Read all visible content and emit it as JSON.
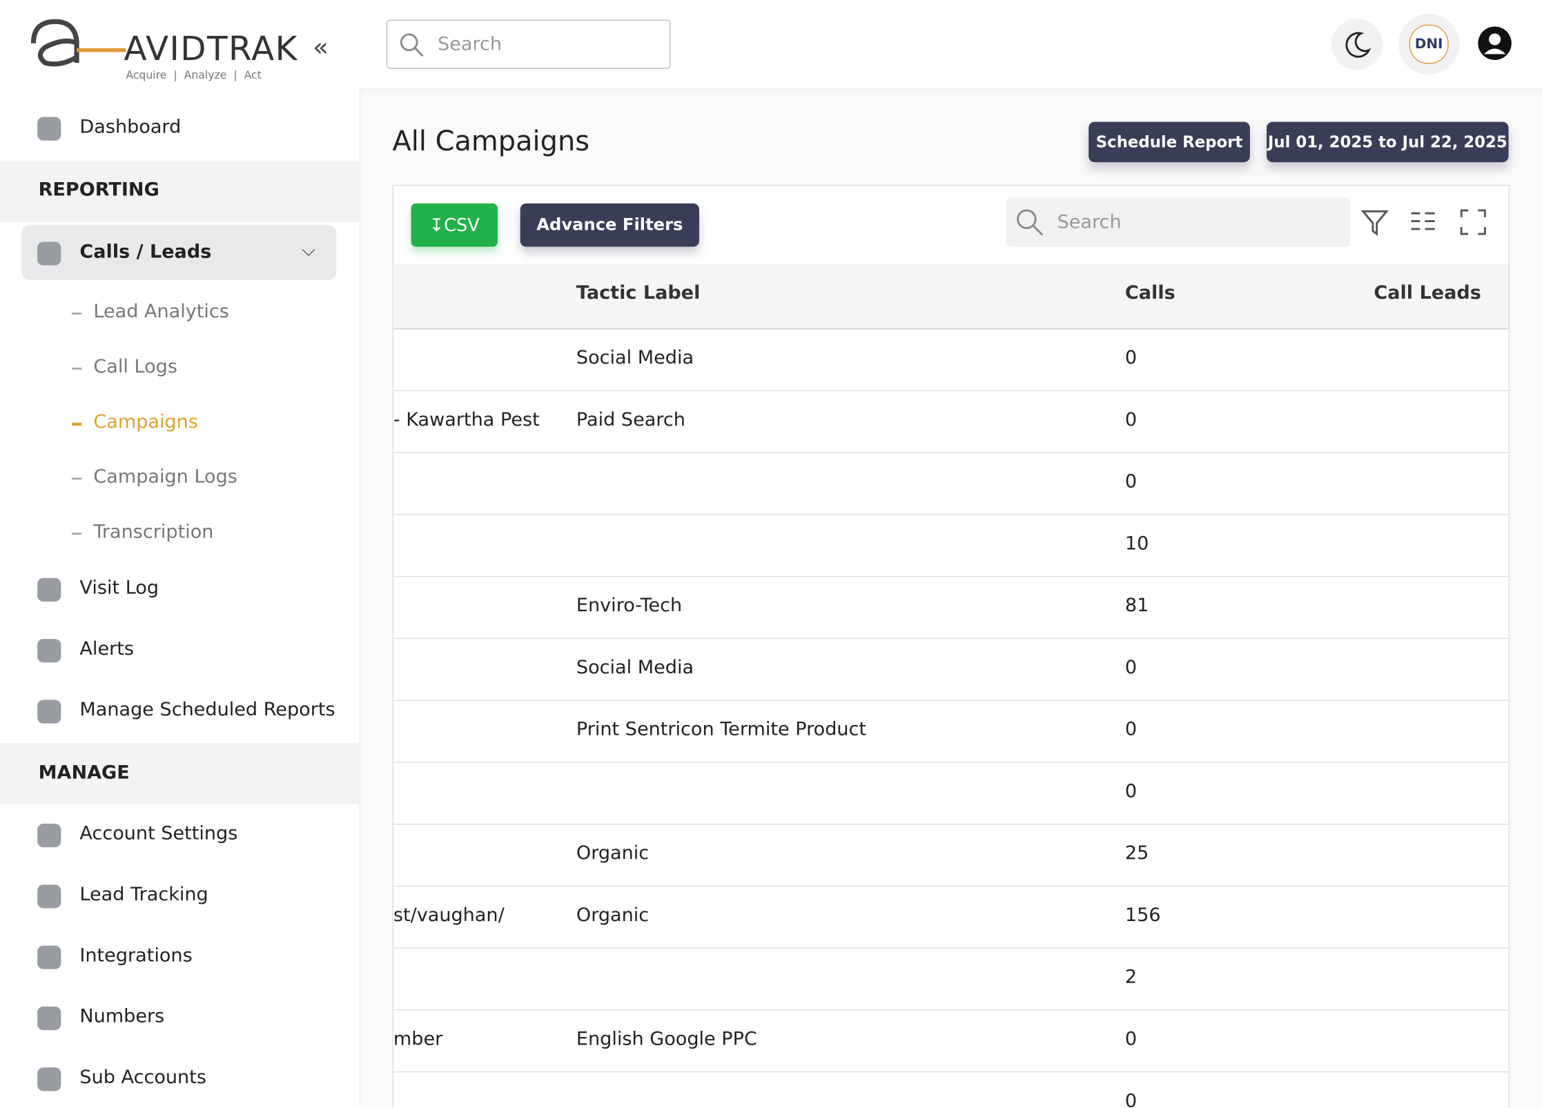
{
  "logo": {
    "brand": "AVIDTRAK",
    "tagline": "Acquire  |  Analyze  |  Act"
  },
  "header": {
    "search_placeholder": "Search",
    "badge": "DNI"
  },
  "sidebar": {
    "dashboard": "Dashboard",
    "reporting": {
      "title": "REPORTING",
      "group": "Calls / Leads",
      "subitems": [
        "Lead Analytics",
        "Call Logs",
        "Campaigns",
        "Campaign Logs",
        "Transcription"
      ],
      "active_subitem": 2,
      "items": [
        "Visit Log",
        "Alerts",
        "Manage Scheduled Reports"
      ]
    },
    "manage": {
      "title": "MANAGE",
      "items": [
        "Account Settings",
        "Lead Tracking",
        "Integrations",
        "Numbers",
        "Sub Accounts"
      ]
    }
  },
  "page": {
    "title": "All Campaigns",
    "schedule_button": "Schedule Report",
    "date_range": "Jul 01, 2025 to Jul 22, 2025"
  },
  "table": {
    "csv_button": "CSV",
    "filter_button": "Advance Filters",
    "search_placeholder": "Search",
    "columns": [
      "Tactic Label",
      "Calls",
      "Call Leads"
    ],
    "rows": [
      [
        null,
        "Social Media",
        "0"
      ],
      [
        "- Kawartha Pest",
        "Paid Search",
        "0"
      ],
      [
        null,
        null,
        "0"
      ],
      [
        null,
        null,
        "10"
      ],
      [
        null,
        "Enviro-Tech",
        "81"
      ],
      [
        null,
        "Social Media",
        "0"
      ],
      [
        null,
        "Print Sentricon Termite Product",
        "0"
      ],
      [
        null,
        null,
        "0"
      ],
      [
        null,
        "Organic",
        "25"
      ],
      [
        "st/vaughan/",
        "Organic",
        "156"
      ],
      [
        null,
        null,
        "2"
      ],
      [
        "mber",
        "English Google PPC",
        "0"
      ],
      [
        null,
        null,
        "0"
      ]
    ]
  }
}
